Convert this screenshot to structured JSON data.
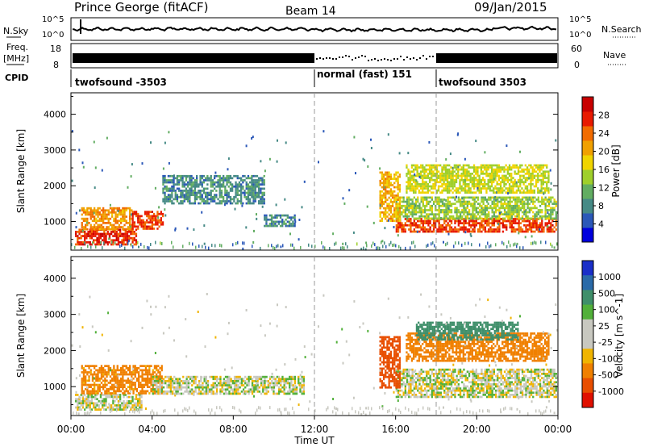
{
  "header": {
    "station": "Prince George (fitACF)",
    "beam": "Beam 14",
    "date": "09/Jan/2015"
  },
  "labels": {
    "nsky": "N.Sky",
    "freq": "Freq.",
    "freq_unit": "[MHz]",
    "cpid": "CPID",
    "nsearch": "N.Search",
    "nave": "Nave",
    "nsky_hi": "10^5",
    "nsky_lo": "10^0",
    "freq_hi": "18",
    "freq_lo": "8",
    "nave_hi": "60",
    "nave_lo": "0",
    "time_axis": "Time UT"
  },
  "cpid_segments": [
    {
      "label": "twofsound -3503",
      "start_hour": 0
    },
    {
      "label": "normal (fast) 151",
      "start_hour": 12
    },
    {
      "label": "twofsound 3503",
      "start_hour": 18
    }
  ],
  "time_ticks": [
    "00:00",
    "04:00",
    "08:00",
    "12:00",
    "16:00",
    "20:00",
    "00:00"
  ],
  "power_panel": {
    "ylabel": "Slant Range [km]",
    "yticks": [
      "1000",
      "2000",
      "3000",
      "4000"
    ],
    "colorbar_label": "Power [dB]",
    "colorbar_ticks": [
      "4",
      "8",
      "12",
      "16",
      "20",
      "24",
      "28"
    ],
    "colors": [
      "#0000dd",
      "#2b58b8",
      "#468a86",
      "#62ad62",
      "#9fcf2b",
      "#f0d400",
      "#f0a000",
      "#f26c00",
      "#e81a00",
      "#c80000"
    ]
  },
  "velocity_panel": {
    "ylabel": "Slant Range [km]",
    "yticks": [
      "1000",
      "2000",
      "3000",
      "4000"
    ],
    "colorbar_label": "Velocity [m s^-1]",
    "colorbar_ticks": [
      "1000",
      "500",
      "100",
      "25",
      "-25",
      "-100",
      "-500",
      "-1000"
    ],
    "colors": [
      "#1a2fc8",
      "#2a6aa8",
      "#3f8f6a",
      "#52b03a",
      "#c8c8c0",
      "#c8c8c0",
      "#f0b400",
      "#f08000",
      "#e84e00",
      "#e01000"
    ]
  },
  "chart_data": [
    {
      "type": "heatmap",
      "title": "Power",
      "xlabel": "Time UT",
      "ylabel": "Slant Range [km]",
      "xlim": [
        0,
        24
      ],
      "ylim": [
        200,
        4600
      ],
      "colorbar": "Power [dB]",
      "clim": [
        0,
        32
      ],
      "regions": [
        {
          "t0": 0.2,
          "t1": 3.2,
          "r0": 350,
          "r1": 800,
          "value": 27
        },
        {
          "t0": 0.5,
          "t1": 3.0,
          "r0": 800,
          "r1": 1400,
          "value": 22
        },
        {
          "t0": 3.0,
          "t1": 4.5,
          "r0": 800,
          "r1": 1300,
          "value": 26
        },
        {
          "t0": 4.5,
          "t1": 9.5,
          "r0": 1500,
          "r1": 2300,
          "value": 8
        },
        {
          "t0": 9.5,
          "t1": 11.0,
          "r0": 900,
          "r1": 1200,
          "value": 8
        },
        {
          "t0": 16.0,
          "t1": 23.9,
          "r0": 700,
          "r1": 1100,
          "value": 26
        },
        {
          "t0": 16.0,
          "t1": 23.9,
          "r0": 1100,
          "r1": 1700,
          "value": 14
        },
        {
          "t0": 16.5,
          "t1": 23.5,
          "r0": 1800,
          "r1": 2600,
          "value": 16
        },
        {
          "t0": 15.2,
          "t1": 16.2,
          "r0": 1000,
          "r1": 2400,
          "value": 20
        }
      ]
    },
    {
      "type": "heatmap",
      "title": "Velocity",
      "xlabel": "Time UT",
      "ylabel": "Slant Range [km]",
      "xlim": [
        0,
        24
      ],
      "ylim": [
        200,
        4600
      ],
      "colorbar": "Velocity [m s^-1]",
      "clim": [
        -1000,
        1000
      ],
      "regions": [
        {
          "t0": 0.2,
          "t1": 3.5,
          "r0": 350,
          "r1": 800,
          "value": 0
        },
        {
          "t0": 0.5,
          "t1": 4.5,
          "r0": 800,
          "r1": 1600,
          "value": -150
        },
        {
          "t0": 4.0,
          "t1": 11.5,
          "r0": 800,
          "r1": 1300,
          "value": 0
        },
        {
          "t0": 16.0,
          "t1": 23.9,
          "r0": 700,
          "r1": 1500,
          "value": 0
        },
        {
          "t0": 16.5,
          "t1": 23.5,
          "r0": 1700,
          "r1": 2500,
          "value": -400
        },
        {
          "t0": 17.0,
          "t1": 22.0,
          "r0": 2300,
          "r1": 2800,
          "value": 200
        },
        {
          "t0": 15.2,
          "t1": 16.2,
          "r0": 1000,
          "r1": 2400,
          "value": -700
        }
      ]
    }
  ]
}
